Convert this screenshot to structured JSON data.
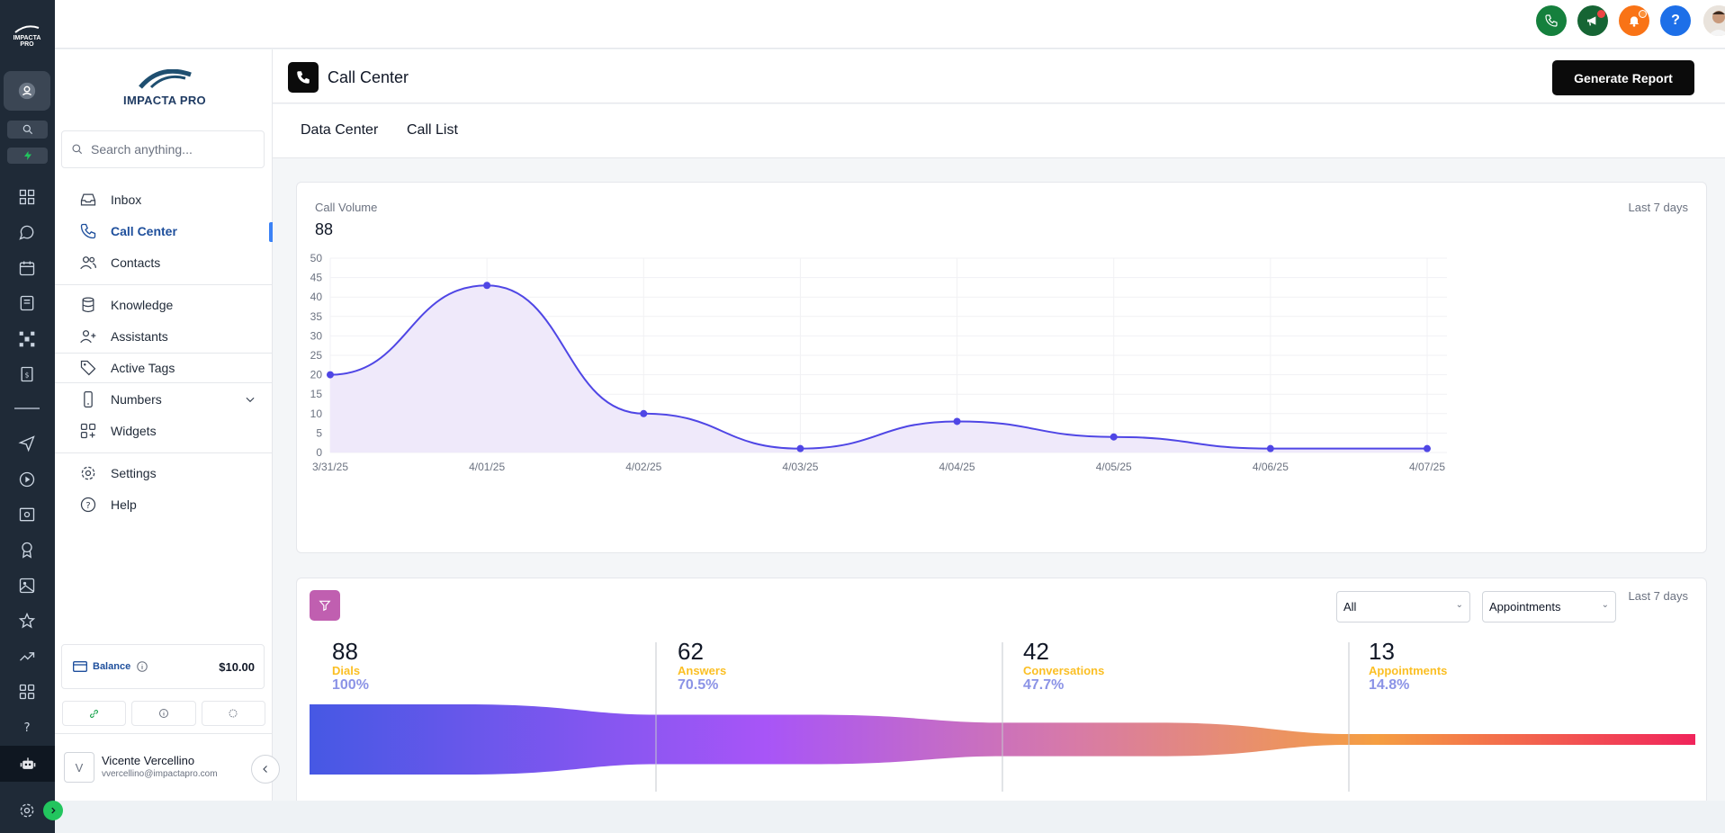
{
  "app": {
    "brand": "IMPACTA PRO",
    "brand_mini": "IMPACTA PRO"
  },
  "nav": {
    "search_placeholder": "Search anything...",
    "items": [
      {
        "label": "Inbox",
        "icon": "inbox-icon"
      },
      {
        "label": "Call Center",
        "icon": "phone-icon"
      },
      {
        "label": "Contacts",
        "icon": "users-icon"
      },
      {
        "label": "Knowledge",
        "icon": "database-icon"
      },
      {
        "label": "Assistants",
        "icon": "user-plus-icon"
      },
      {
        "label": "Active Tags",
        "icon": "tag-icon"
      },
      {
        "label": "Numbers",
        "icon": "phone-device-icon"
      },
      {
        "label": "Widgets",
        "icon": "widgets-icon"
      },
      {
        "label": "Settings",
        "icon": "gear-icon"
      },
      {
        "label": "Help",
        "icon": "help-icon"
      }
    ],
    "balance_label": "Balance",
    "balance_amount": "$10.00",
    "user": {
      "initial": "V",
      "name": "Vicente Vercellino",
      "email": "vvercellino@impactapro.com"
    }
  },
  "page": {
    "title": "Call Center",
    "generate_report": "Generate Report",
    "tabs": [
      "Data Center",
      "Call List"
    ]
  },
  "volume": {
    "label": "Call Volume",
    "value": "88",
    "range": "Last 7 days"
  },
  "chart_data": {
    "type": "area",
    "x": [
      "3/31/25",
      "4/01/25",
      "4/02/25",
      "4/03/25",
      "4/04/25",
      "4/05/25",
      "4/06/25",
      "4/07/25"
    ],
    "series": [
      {
        "values": [
          20,
          43,
          10,
          1,
          8,
          4,
          1,
          1
        ]
      }
    ],
    "ylim": [
      0,
      50
    ],
    "yticks": [
      0,
      5,
      10,
      15,
      20,
      25,
      30,
      35,
      40,
      45,
      50
    ],
    "grid": true,
    "colors": {
      "line": "#4f46e5",
      "fill": "#efe9fa"
    }
  },
  "funnel": {
    "filter_all": "All",
    "filter_goal": "Appointments",
    "range": "Last 7 days",
    "stages": [
      {
        "value": "88",
        "name": "Dials",
        "pct": "100%"
      },
      {
        "value": "62",
        "name": "Answers",
        "pct": "70.5%"
      },
      {
        "value": "42",
        "name": "Conversations",
        "pct": "47.7%"
      },
      {
        "value": "13",
        "name": "Appointments",
        "pct": "14.8%"
      }
    ]
  }
}
